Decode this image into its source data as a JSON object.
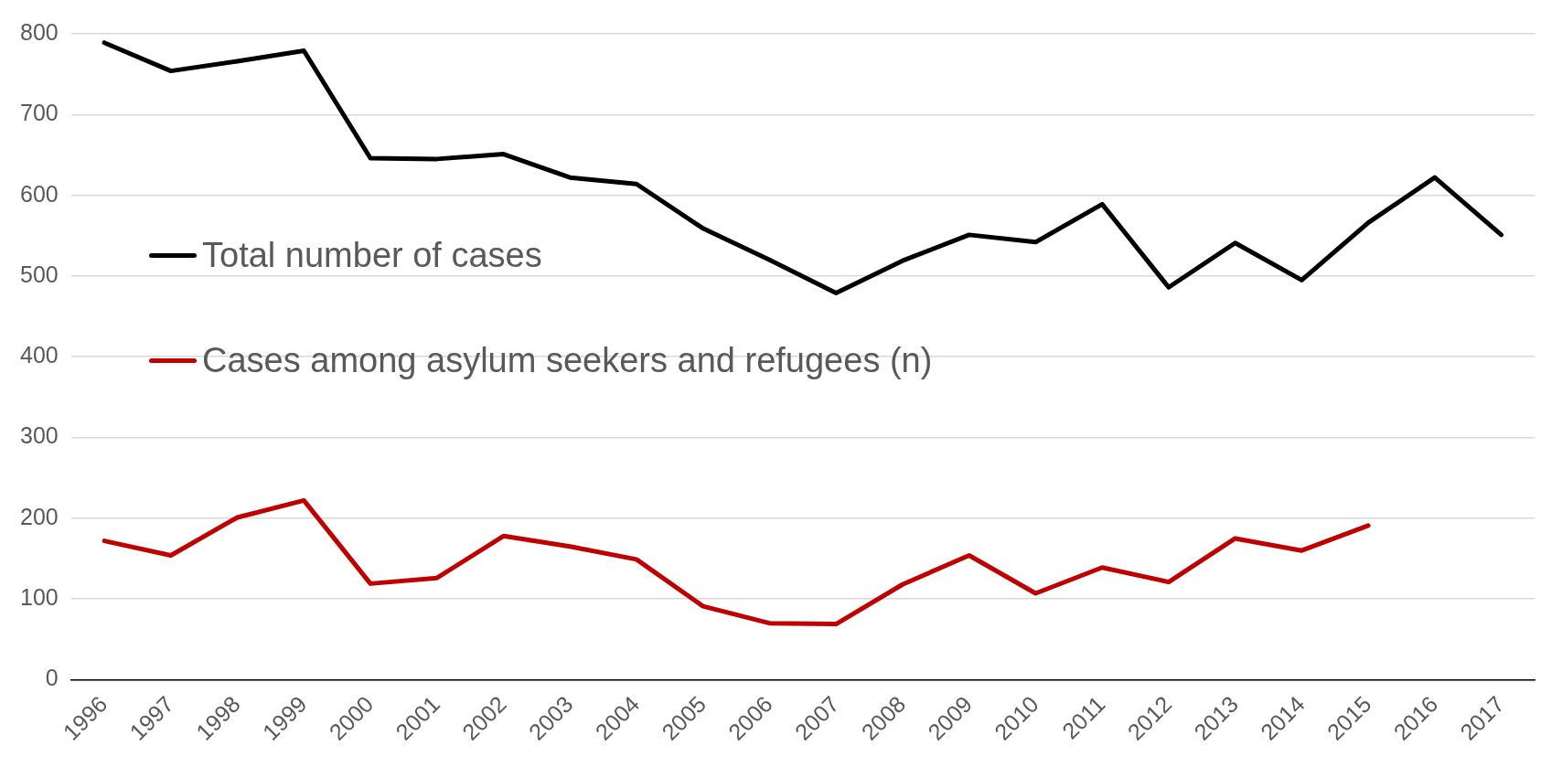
{
  "chart_data": {
    "type": "line",
    "categories": [
      "1996",
      "1997",
      "1998",
      "1999",
      "2000",
      "2001",
      "2002",
      "2003",
      "2004",
      "2005",
      "2006",
      "2007",
      "2008",
      "2009",
      "2010",
      "2011",
      "2012",
      "2013",
      "2014",
      "2015",
      "2016",
      "2017"
    ],
    "series": [
      {
        "name": "Total number of cases",
        "color": "#000000",
        "values": [
          789,
          754,
          766,
          779,
          646,
          645,
          651,
          622,
          614,
          559,
          520,
          479,
          519,
          551,
          542,
          589,
          486,
          541,
          495,
          566,
          622,
          551
        ]
      },
      {
        "name": "Cases among asylum seekers and refugees (n)",
        "color": "#c00000",
        "values": [
          172,
          154,
          201,
          222,
          119,
          126,
          178,
          165,
          149,
          91,
          70,
          69,
          118,
          154,
          107,
          139,
          121,
          175,
          160,
          191,
          null,
          null
        ]
      }
    ],
    "ylim": [
      0,
      800
    ],
    "yticks": [
      0,
      100,
      200,
      300,
      400,
      500,
      600,
      700,
      800
    ],
    "grid": "y",
    "legend": "left",
    "marker": "none",
    "line_style": "solid"
  }
}
